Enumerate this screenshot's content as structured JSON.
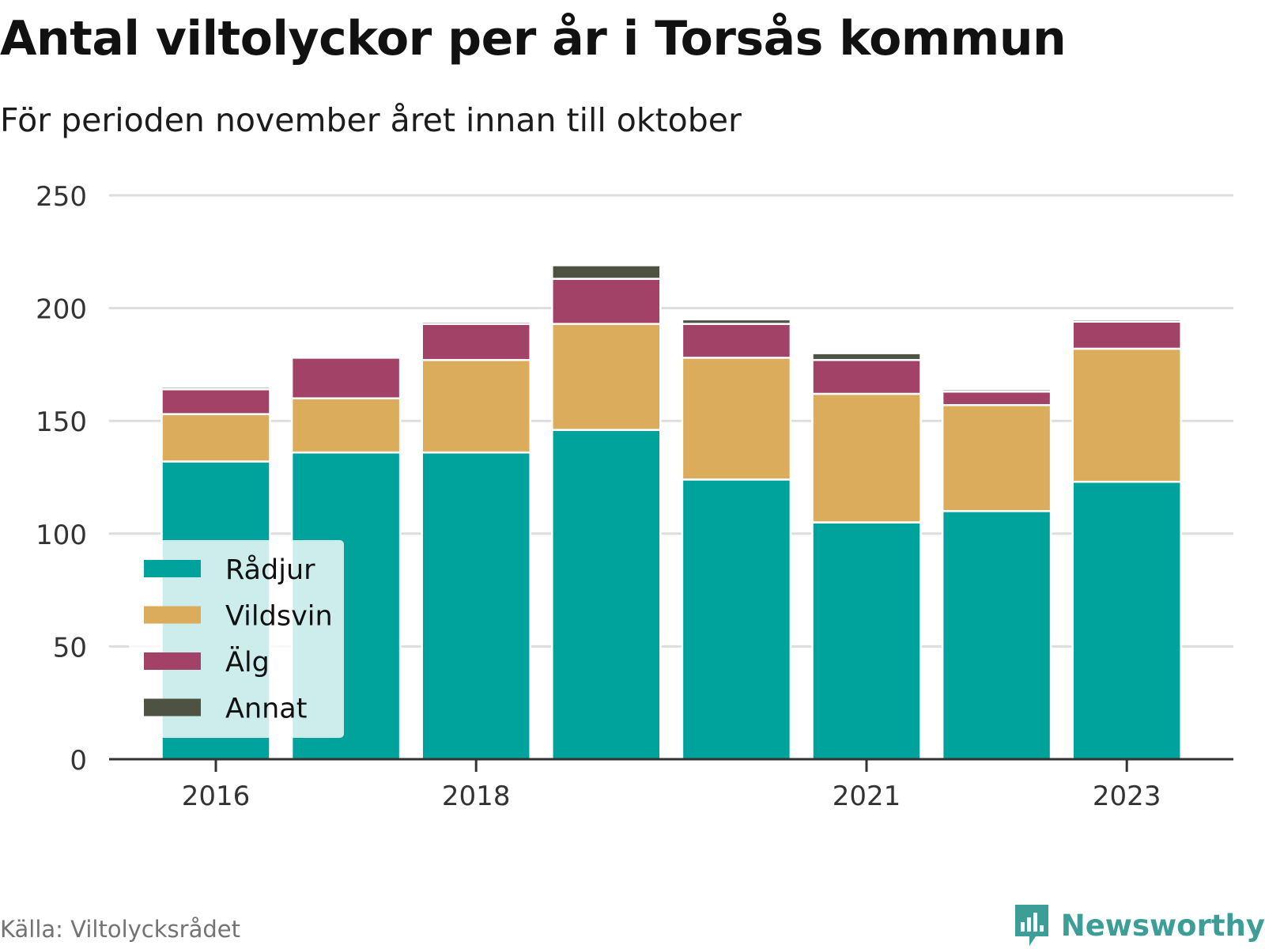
{
  "chart_data": {
    "type": "bar",
    "stacked": true,
    "title": "Antal viltolyckor per år i Torsås kommun",
    "subtitle": "För perioden november året innan till oktober",
    "categories": [
      "2016",
      "2017",
      "2018",
      "2019",
      "2020",
      "2021",
      "2022",
      "2023"
    ],
    "x_tick_labels": [
      "2016",
      "",
      "2018",
      "",
      "",
      "2021",
      "",
      "2023"
    ],
    "series": [
      {
        "name": "Rådjur",
        "color": "#00a39b",
        "values": [
          132,
          136,
          136,
          146,
          124,
          105,
          110,
          123
        ]
      },
      {
        "name": "Vildsvin",
        "color": "#dbac5c",
        "values": [
          21,
          24,
          41,
          47,
          54,
          57,
          47,
          59
        ]
      },
      {
        "name": "Älg",
        "color": "#a34267",
        "values": [
          11,
          18,
          16,
          20,
          15,
          15,
          6,
          12
        ]
      },
      {
        "name": "Annat",
        "color": "#4e5243",
        "values": [
          1,
          0,
          1,
          6,
          2,
          3,
          1,
          1
        ]
      }
    ],
    "xlabel": "",
    "ylabel": "",
    "ylim": [
      0,
      250
    ],
    "yticks": [
      "0",
      "50",
      "100",
      "150",
      "200",
      "250"
    ],
    "grid": true,
    "legend_position": "bottom-left inside plot"
  },
  "footer": {
    "source": "Källa: Viltolycksrådet",
    "brand": "Newsworthy",
    "brand_icon": "newsworthy-logo-icon",
    "brand_color": "#3c9e97"
  }
}
